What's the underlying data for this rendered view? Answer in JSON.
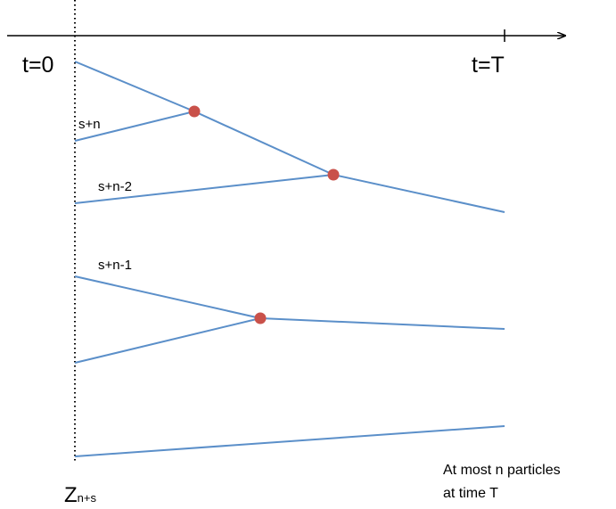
{
  "labels": {
    "t_start": "t=0",
    "t_end": "t=T",
    "branch_1": "s+n",
    "branch_2": "s+n-2",
    "branch_3": "s+n-1",
    "z_main": "Z",
    "z_sub": "n+s",
    "note_line1": "At most n particles",
    "note_line2": "at time T"
  },
  "colors": {
    "line": "#5b8fc9",
    "merge_point": "#c9514a",
    "axis": "#000000"
  }
}
